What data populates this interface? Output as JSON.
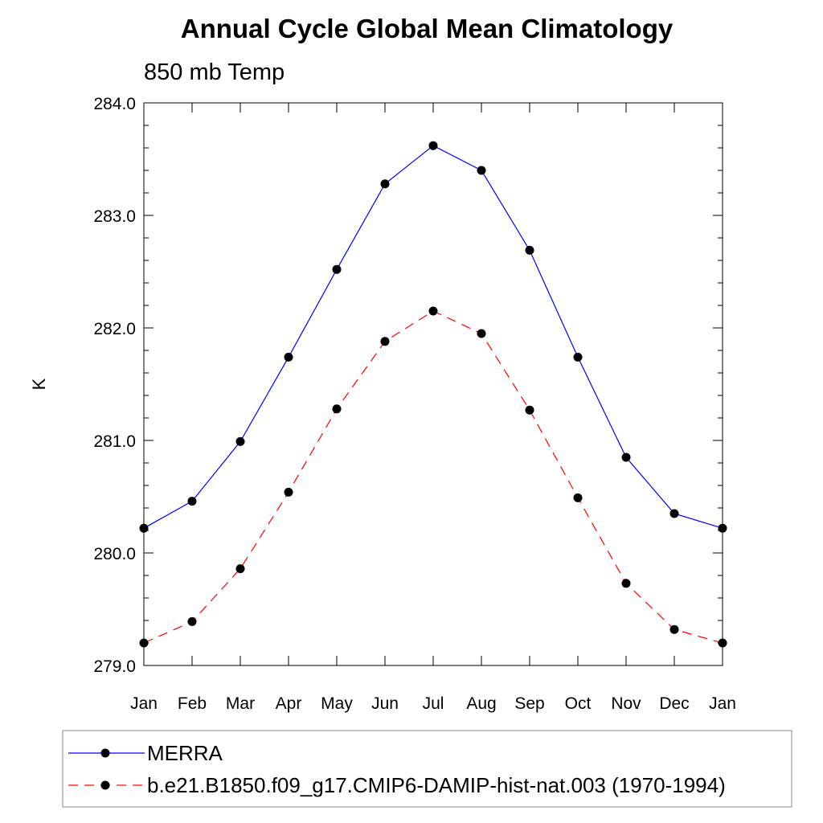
{
  "chart_data": {
    "type": "line",
    "title": "Annual Cycle Global Mean Climatology",
    "subtitle": "850 mb Temp",
    "xlabel": "",
    "ylabel": "K",
    "categories": [
      "Jan",
      "Feb",
      "Mar",
      "Apr",
      "May",
      "Jun",
      "Jul",
      "Aug",
      "Sep",
      "Oct",
      "Nov",
      "Dec",
      "Jan"
    ],
    "ylim": [
      279.0,
      284.0
    ],
    "yticks": [
      "279.0",
      "280.0",
      "281.0",
      "282.0",
      "283.0",
      "284.0"
    ],
    "grid": false,
    "legend_position": "bottom",
    "series": [
      {
        "name": "MERRA",
        "color": "#0000ff",
        "dash": "solid",
        "marker": "circle",
        "values": [
          280.22,
          280.46,
          280.99,
          281.74,
          282.52,
          283.28,
          283.62,
          283.4,
          282.69,
          281.74,
          280.85,
          280.35,
          280.22
        ]
      },
      {
        "name": "b.e21.B1850.f09_g17.CMIP6-DAMIP-hist-nat.003 (1970-1994)",
        "color": "#ff0000",
        "dash": "dashed",
        "marker": "circle",
        "values": [
          279.2,
          279.39,
          279.86,
          280.54,
          281.28,
          281.88,
          282.15,
          281.95,
          281.27,
          280.49,
          279.73,
          279.32,
          279.2
        ]
      }
    ]
  }
}
